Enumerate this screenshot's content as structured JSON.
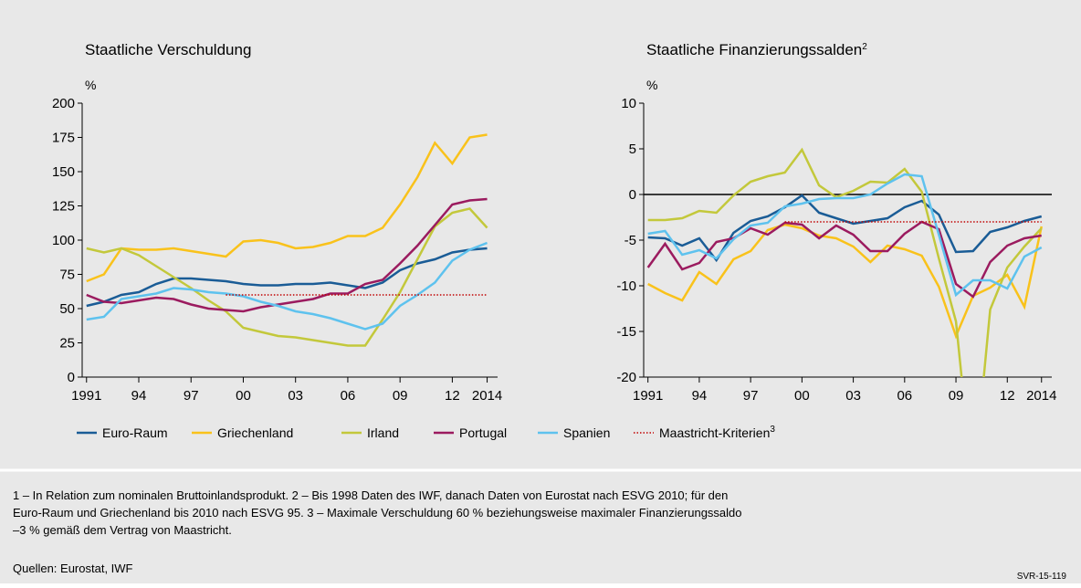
{
  "chart_data": [
    {
      "type": "line",
      "title": "Staatliche Verschuldung",
      "unit": "%",
      "x": [
        1991,
        1992,
        1993,
        1994,
        1995,
        1996,
        1997,
        1998,
        1999,
        2000,
        2001,
        2002,
        2003,
        2004,
        2005,
        2006,
        2007,
        2008,
        2009,
        2010,
        2011,
        2012,
        2013,
        2014
      ],
      "xlim": [
        1990.75,
        2014.6
      ],
      "xticks": [
        {
          "value": 1991,
          "label": "1991"
        },
        {
          "value": 1994,
          "label": "94"
        },
        {
          "value": 1997,
          "label": "97"
        },
        {
          "value": 2000,
          "label": "00"
        },
        {
          "value": 2003,
          "label": "03"
        },
        {
          "value": 2006,
          "label": "06"
        },
        {
          "value": 2009,
          "label": "09"
        },
        {
          "value": 2012,
          "label": "12"
        },
        {
          "value": 2014,
          "label": "2014"
        }
      ],
      "ylim": [
        0,
        200
      ],
      "yticks": [
        0,
        25,
        50,
        75,
        100,
        125,
        150,
        175,
        200
      ],
      "zero_line": false,
      "series": [
        {
          "name": "Euro-Raum",
          "color": "#1a5c96",
          "values": [
            52,
            55,
            60,
            62,
            68,
            72,
            72,
            71,
            70,
            68,
            67,
            67,
            68,
            68,
            69,
            67,
            65,
            69,
            78,
            83,
            86,
            91,
            93,
            94
          ]
        },
        {
          "name": "Griechenland",
          "color": "#f9c21b",
          "values": [
            70,
            75,
            94,
            93,
            93,
            94,
            92,
            90,
            88,
            99,
            100,
            98,
            94,
            95,
            98,
            103,
            103,
            109,
            126,
            146,
            171,
            156,
            175,
            177
          ]
        },
        {
          "name": "Irland",
          "color": "#c3c83b",
          "values": [
            94,
            91,
            94,
            89,
            81,
            73,
            65,
            56,
            48,
            36,
            33,
            30,
            29,
            27,
            25,
            23,
            23,
            42,
            62,
            86,
            110,
            120,
            123,
            109
          ]
        },
        {
          "name": "Portugal",
          "color": "#9b1b5f",
          "values": [
            60,
            55,
            54,
            56,
            58,
            57,
            53,
            50,
            49,
            48,
            51,
            53,
            55,
            57,
            61,
            61,
            68,
            71,
            83,
            96,
            111,
            126,
            129,
            130
          ]
        },
        {
          "name": "Spanien",
          "color": "#5ec2ee",
          "values": [
            42,
            44,
            57,
            59,
            61,
            65,
            64,
            62,
            61,
            59,
            55,
            52,
            48,
            46,
            43,
            39,
            35,
            39,
            52,
            60,
            69,
            85,
            93,
            98
          ]
        },
        {
          "name": "Maastricht-Kriterien",
          "name_note": "3",
          "color": "#c00000",
          "dash": true,
          "values": [
            null,
            null,
            null,
            null,
            null,
            null,
            null,
            null,
            60,
            60,
            60,
            60,
            60,
            60,
            60,
            60,
            60,
            60,
            60,
            60,
            60,
            60,
            60,
            60
          ]
        }
      ]
    },
    {
      "type": "line",
      "title": "Staatliche Finanzierungssalden",
      "title_note": "2",
      "unit": "%",
      "x": [
        1991,
        1992,
        1993,
        1994,
        1995,
        1996,
        1997,
        1998,
        1999,
        2000,
        2001,
        2002,
        2003,
        2004,
        2005,
        2006,
        2007,
        2008,
        2009,
        2010,
        2011,
        2012,
        2013,
        2014
      ],
      "xlim": [
        1990.75,
        2014.6
      ],
      "xticks": [
        {
          "value": 1991,
          "label": "1991"
        },
        {
          "value": 1994,
          "label": "94"
        },
        {
          "value": 1997,
          "label": "97"
        },
        {
          "value": 2000,
          "label": "00"
        },
        {
          "value": 2003,
          "label": "03"
        },
        {
          "value": 2006,
          "label": "06"
        },
        {
          "value": 2009,
          "label": "09"
        },
        {
          "value": 2012,
          "label": "12"
        },
        {
          "value": 2014,
          "label": "2014"
        }
      ],
      "ylim": [
        -20,
        10
      ],
      "yticks": [
        -20,
        -15,
        -10,
        -5,
        0,
        5,
        10
      ],
      "zero_line": true,
      "series": [
        {
          "name": "Euro-Raum",
          "color": "#1a5c96",
          "values": [
            -4.7,
            -4.8,
            -5.6,
            -4.8,
            -7.2,
            -4.2,
            -2.9,
            -2.4,
            -1.4,
            -0.1,
            -2.0,
            -2.6,
            -3.2,
            -2.9,
            -2.6,
            -1.4,
            -0.7,
            -2.2,
            -6.3,
            -6.2,
            -4.1,
            -3.6,
            -2.9,
            -2.4
          ]
        },
        {
          "name": "Griechenland",
          "color": "#f9c21b",
          "values": [
            -9.8,
            -10.8,
            -11.6,
            -8.5,
            -9.8,
            -7.1,
            -6.2,
            -3.9,
            -3.3,
            -3.7,
            -4.5,
            -4.8,
            -5.7,
            -7.4,
            -5.6,
            -6.0,
            -6.7,
            -10.1,
            -15.5,
            -11.1,
            -10.2,
            -8.8,
            -12.3,
            -3.5
          ]
        },
        {
          "name": "Irland",
          "color": "#c3c83b",
          "values": [
            -2.8,
            -2.8,
            -2.6,
            -1.8,
            -2.0,
            -0.1,
            1.4,
            2.0,
            2.4,
            4.9,
            1.0,
            -0.3,
            0.4,
            1.4,
            1.3,
            2.8,
            0.3,
            -7.0,
            -13.9,
            -32.4,
            -12.6,
            -8.0,
            -5.7,
            -3.7
          ]
        },
        {
          "name": "Portugal",
          "color": "#9b1b5f",
          "values": [
            -8.0,
            -5.4,
            -8.2,
            -7.5,
            -5.2,
            -4.8,
            -3.7,
            -4.4,
            -3.1,
            -3.3,
            -4.8,
            -3.4,
            -4.4,
            -6.2,
            -6.2,
            -4.3,
            -3.0,
            -3.8,
            -9.8,
            -11.2,
            -7.4,
            -5.6,
            -4.8,
            -4.5
          ]
        },
        {
          "name": "Spanien",
          "color": "#5ec2ee",
          "values": [
            -4.3,
            -4.0,
            -6.6,
            -6.1,
            -7.0,
            -4.9,
            -3.4,
            -3.1,
            -1.3,
            -1.0,
            -0.5,
            -0.4,
            -0.4,
            0.0,
            1.2,
            2.2,
            2.0,
            -4.4,
            -11.0,
            -9.4,
            -9.4,
            -10.3,
            -6.8,
            -5.8
          ]
        },
        {
          "name": "Maastricht-Kriterien",
          "name_note": "3",
          "color": "#c00000",
          "dash": true,
          "values": [
            null,
            null,
            null,
            null,
            null,
            null,
            null,
            null,
            -3,
            -3,
            -3,
            -3,
            -3,
            -3,
            -3,
            -3,
            -3,
            -3,
            -3,
            -3,
            -3,
            -3,
            -3,
            -3
          ]
        }
      ]
    }
  ],
  "footnotes": [
    "1 – In Relation zum nominalen Bruttoinlandsprodukt.  2 – Bis 1998 Daten des IWF, danach Daten von Eurostat nach ESVG 2010; für den",
    "Euro-Raum und Griechenland bis 2010 nach ESVG 95.  3 – Maximale Verschuldung 60 % beziehungsweise maximaler Finanzierungssaldo",
    "–3 % gemäß dem Vertrag von Maastricht."
  ],
  "sources": "Quellen: Eurostat, IWF",
  "code": "SVR-15-119"
}
